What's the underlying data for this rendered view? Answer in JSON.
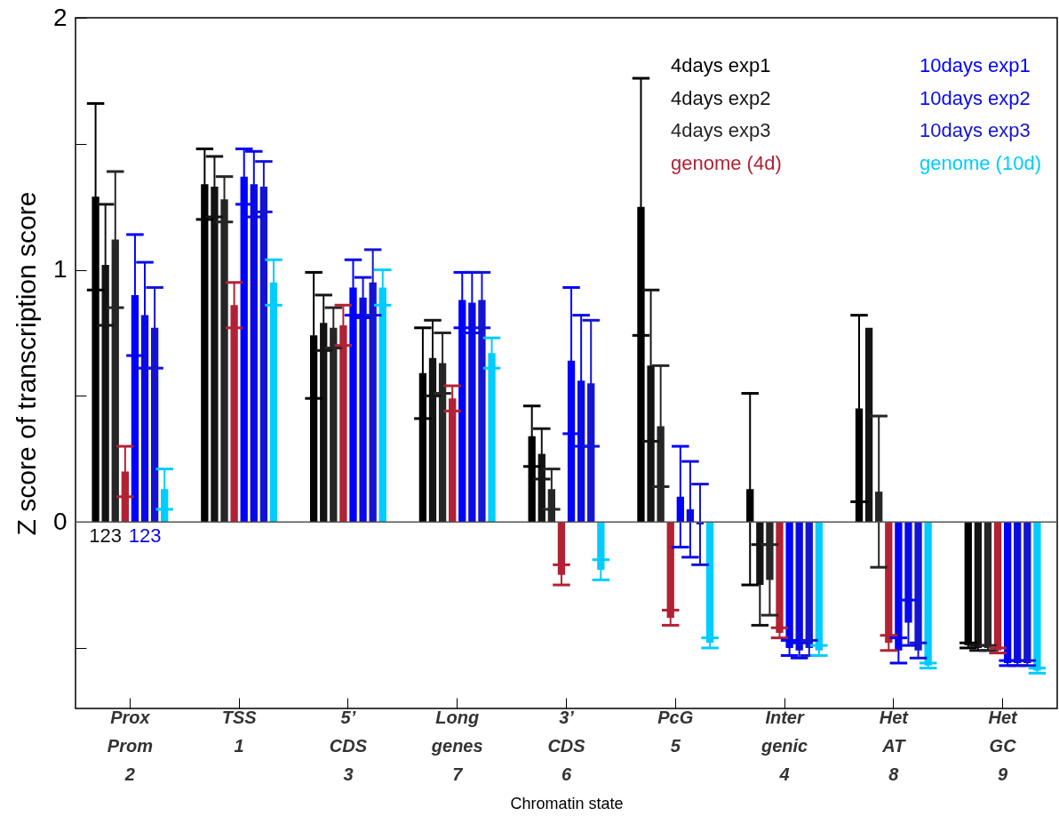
{
  "chart_data": {
    "type": "bar",
    "xlabel": "Chromatin state",
    "ylabel": "Z score of transcription score",
    "categories": [
      "Prox\nProm\n2",
      "TSS\n\n1",
      "5’\nCDS\n3",
      "Long\ngenes\n7",
      "3’\nCDS\n6",
      "PcG\n\n5",
      "Inter\ngenic\n4",
      "Het\nAT\n8",
      "Het\nGC\n9"
    ],
    "series": [
      {
        "name": "4days exp1",
        "color": "#000000",
        "values": [
          1.29,
          1.34,
          0.74,
          0.59,
          0.34,
          1.25,
          0.13,
          0.45,
          -0.49
        ],
        "errors": [
          0.37,
          0.14,
          0.25,
          0.18,
          0.12,
          0.51,
          0.38,
          0.37,
          0.01
        ]
      },
      {
        "name": "4days exp2",
        "color": "#141414",
        "values": [
          1.02,
          1.33,
          0.79,
          0.65,
          0.27,
          0.62,
          -0.25,
          0.77,
          -0.5
        ],
        "errors": [
          0.24,
          0.12,
          0.11,
          0.15,
          0.1,
          0.3,
          0.16,
          null,
          0.01
        ]
      },
      {
        "name": "4days exp3",
        "color": "#262626",
        "values": [
          1.12,
          1.28,
          0.77,
          0.63,
          0.13,
          0.38,
          -0.23,
          0.12,
          -0.5
        ],
        "errors": [
          0.27,
          0.09,
          0.08,
          0.12,
          0.08,
          0.24,
          0.14,
          0.3,
          0.01
        ]
      },
      {
        "name": "genome (4d)",
        "color": "#b22234",
        "values": [
          0.2,
          0.86,
          0.78,
          0.49,
          -0.21,
          -0.38,
          -0.44,
          -0.48,
          -0.51
        ],
        "errors": [
          0.1,
          0.09,
          0.08,
          0.05,
          0.04,
          0.03,
          0.02,
          0.03,
          0.01
        ]
      },
      {
        "name": "10days exp1",
        "color": "#0000ff",
        "values": [
          0.9,
          1.37,
          0.93,
          0.88,
          0.64,
          0.1,
          -0.5,
          -0.51,
          -0.56
        ],
        "errors": [
          0.24,
          0.11,
          0.11,
          0.11,
          0.29,
          0.2,
          0.03,
          0.05,
          0.01
        ]
      },
      {
        "name": "10days exp2",
        "color": "#0a0ae6",
        "values": [
          0.82,
          1.34,
          0.89,
          0.87,
          0.56,
          0.05,
          -0.51,
          -0.4,
          -0.56
        ],
        "errors": [
          0.21,
          0.13,
          0.08,
          0.12,
          0.26,
          0.19,
          0.03,
          0.09,
          0.01
        ]
      },
      {
        "name": "10days exp3",
        "color": "#1414d2",
        "values": [
          0.77,
          1.33,
          0.95,
          0.88,
          0.55,
          -0.01,
          -0.5,
          -0.51,
          -0.56
        ],
        "errors": [
          0.16,
          0.1,
          0.13,
          0.11,
          0.25,
          0.16,
          0.03,
          0.03,
          0.01
        ]
      },
      {
        "name": "genome (10d)",
        "color": "#00ccff",
        "values": [
          0.13,
          0.95,
          0.93,
          0.67,
          -0.19,
          -0.48,
          -0.51,
          -0.57,
          -0.59
        ],
        "errors": [
          0.08,
          0.09,
          0.07,
          0.06,
          0.04,
          0.02,
          0.02,
          0.01,
          0.01
        ]
      }
    ],
    "ylim": [
      -0.74,
      2
    ],
    "yticks": [
      {
        "value": -0.5,
        "label": null
      },
      0,
      {
        "value": 0.5,
        "label": null
      },
      1,
      {
        "value": 1.5,
        "label": null
      },
      2
    ],
    "ref_lines": [
      {
        "axis": "y",
        "value": 0,
        "color": "#555555"
      }
    ],
    "annotations": [
      {
        "text": "123",
        "x": "Prox\nProm\n2",
        "y": 0
      },
      {
        "text": "123",
        "x": "Prox\nProm\n2",
        "y": 0
      }
    ],
    "legend": "top right",
    "grid": false
  }
}
